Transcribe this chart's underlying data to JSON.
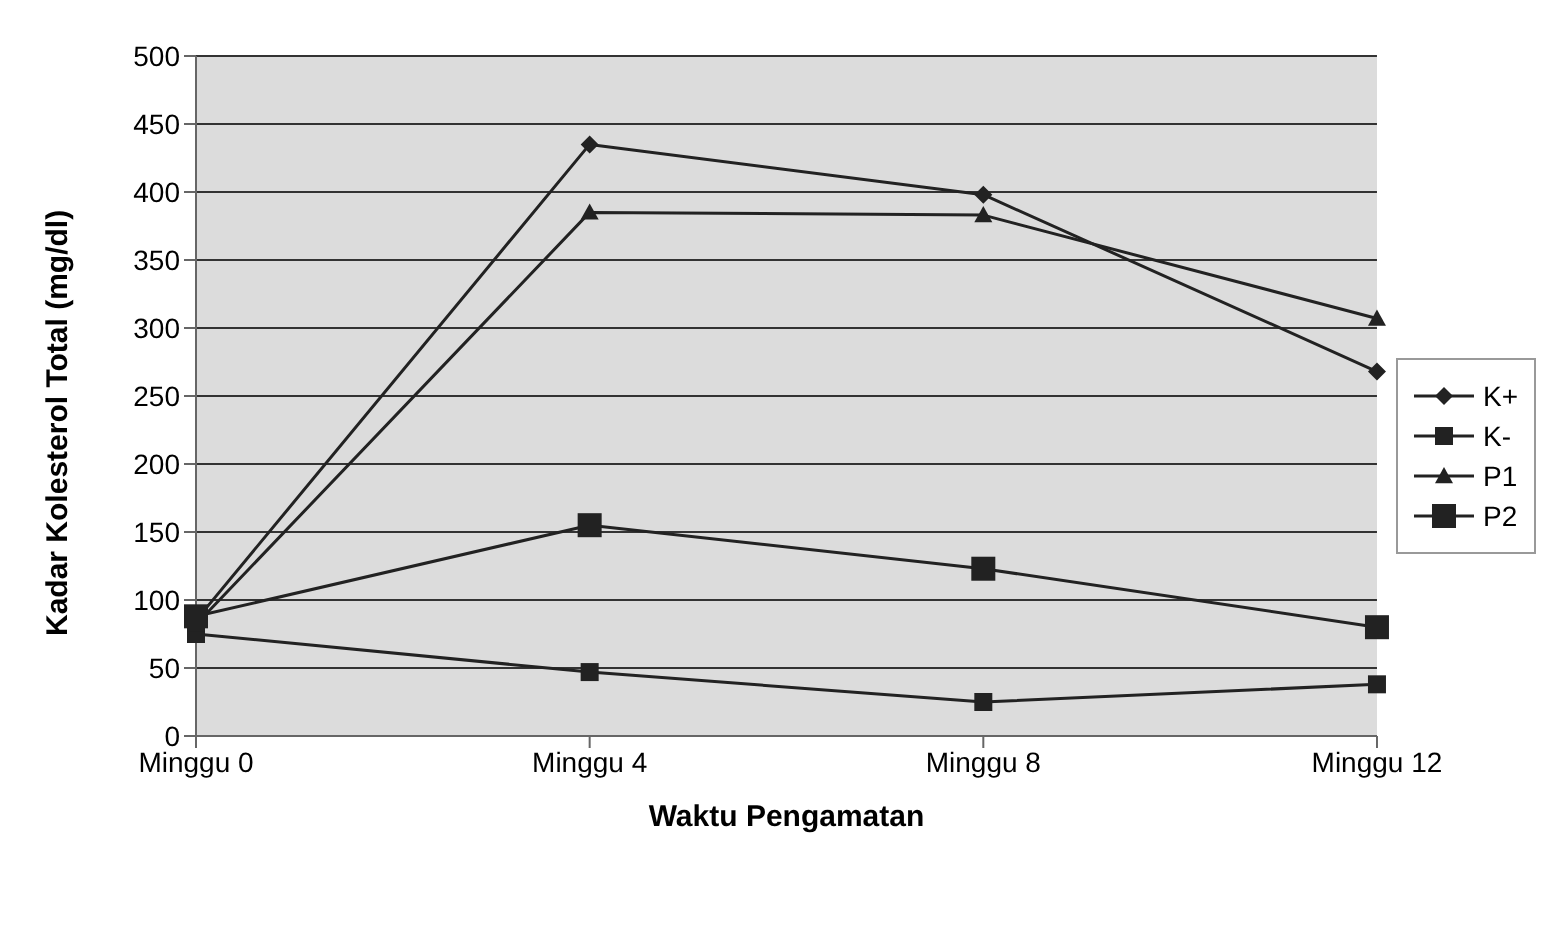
{
  "chart_data": {
    "type": "line",
    "xlabel": "Waktu Pengamatan",
    "ylabel": "Kadar Kolesterol Total (mg/dl)",
    "categories": [
      "Minggu 0",
      "Minggu 4",
      "Minggu 8",
      "Minggu 12"
    ],
    "series": [
      {
        "name": "K+",
        "color": "#222222",
        "marker": "diamond",
        "values": [
          85,
          435,
          398,
          268
        ]
      },
      {
        "name": "K-",
        "color": "#222222",
        "marker": "square",
        "values": [
          75,
          47,
          25,
          38
        ]
      },
      {
        "name": "P1",
        "color": "#222222",
        "marker": "triangle",
        "values": [
          82,
          385,
          383,
          307
        ]
      },
      {
        "name": "P2",
        "color": "#222222",
        "marker": "square",
        "values": [
          88,
          155,
          123,
          80
        ]
      }
    ],
    "ylim": [
      0,
      500
    ],
    "yticks": [
      0,
      50,
      100,
      150,
      200,
      250,
      300,
      350,
      400,
      450,
      500
    ],
    "grid": "y",
    "legend": "right",
    "line_style": "solid"
  }
}
